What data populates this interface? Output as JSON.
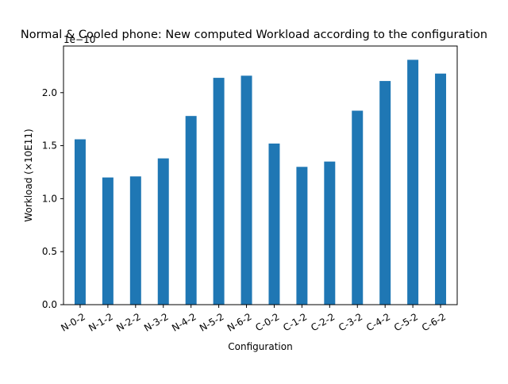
{
  "chart_data": {
    "type": "bar",
    "title": "Normal & Cooled phone: New computed Workload according to the configuration",
    "xlabel": "Configuration",
    "ylabel": "Workload (×10E11)",
    "offset_text": "1e−10",
    "categories": [
      "N-0-2",
      "N-1-2",
      "N-2-2",
      "N-3-2",
      "N-4-2",
      "N-5-2",
      "N-6-2",
      "C-0-2",
      "C-1-2",
      "C-2-2",
      "C-3-2",
      "C-4-2",
      "C-5-2",
      "C-6-2"
    ],
    "values": [
      1.56,
      1.2,
      1.21,
      1.38,
      1.78,
      2.14,
      2.16,
      1.52,
      1.3,
      1.35,
      1.83,
      2.11,
      2.31,
      2.18
    ],
    "ylim": [
      0,
      2.44
    ],
    "yticks": [
      "0.0",
      "0.5",
      "1.0",
      "1.5",
      "2.0"
    ],
    "bar_color": "#1f77b4",
    "grid": false,
    "legend": "none"
  }
}
